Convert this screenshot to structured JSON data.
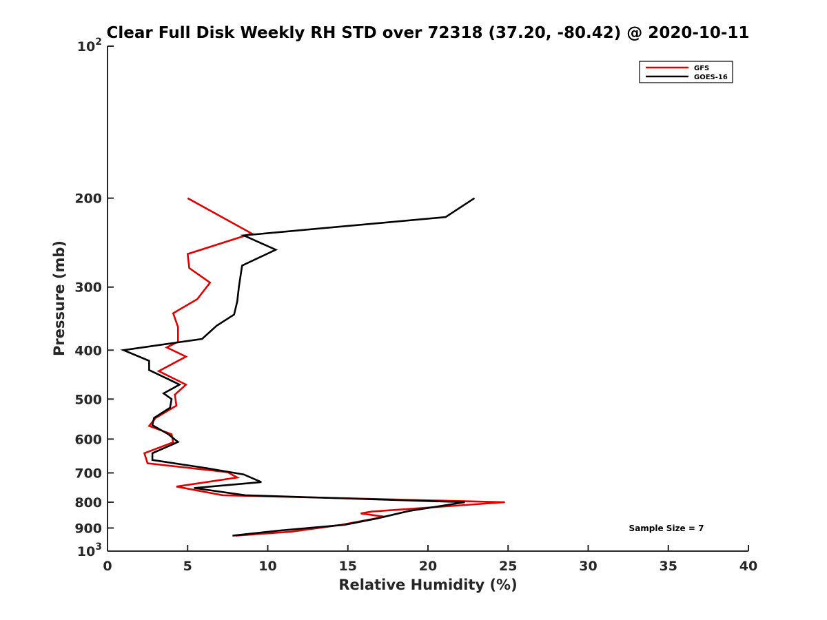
{
  "chart_data": {
    "type": "line",
    "title": "Clear Full Disk Weekly RH STD over 72318 (37.20, -80.42) @ 2020-10-11",
    "xlabel": "Relative Humidity (%)",
    "ylabel": "Pressure (mb)",
    "xlim": [
      0,
      40
    ],
    "ylim": [
      100,
      1000
    ],
    "y_scale": "log",
    "y_reversed": true,
    "grid": false,
    "x_ticks": [
      0,
      5,
      10,
      15,
      20,
      25,
      30,
      35,
      40
    ],
    "x_tick_labels": [
      "0",
      "5",
      "10",
      "15",
      "20",
      "25",
      "30",
      "35",
      "40"
    ],
    "y_ticks": [
      100,
      200,
      300,
      400,
      500,
      600,
      700,
      800,
      900,
      1000
    ],
    "y_tick_labels": [
      {
        "base": "10",
        "exp": "2"
      },
      {
        "base": "200",
        "exp": ""
      },
      {
        "base": "300",
        "exp": ""
      },
      {
        "base": "400",
        "exp": ""
      },
      {
        "base": "500",
        "exp": ""
      },
      {
        "base": "600",
        "exp": ""
      },
      {
        "base": "700",
        "exp": ""
      },
      {
        "base": "800",
        "exp": ""
      },
      {
        "base": "900",
        "exp": ""
      },
      {
        "base": "10",
        "exp": "3"
      }
    ],
    "legend_position": "top-right",
    "annotation": "Sample Size = 7",
    "series": [
      {
        "name": "GFS",
        "color": "#e00000",
        "points": [
          [
            5.0,
            200
          ],
          [
            9.0,
            235
          ],
          [
            5.0,
            258
          ],
          [
            5.1,
            275
          ],
          [
            6.4,
            294
          ],
          [
            5.6,
            317
          ],
          [
            4.1,
            338
          ],
          [
            4.4,
            360
          ],
          [
            4.4,
            385
          ],
          [
            3.7,
            395
          ],
          [
            4.9,
            412
          ],
          [
            3.2,
            440
          ],
          [
            4.9,
            468
          ],
          [
            4.2,
            490
          ],
          [
            4.3,
            515
          ],
          [
            3.0,
            545
          ],
          [
            2.6,
            565
          ],
          [
            4.0,
            587
          ],
          [
            4.1,
            609
          ],
          [
            2.3,
            640
          ],
          [
            2.5,
            670
          ],
          [
            7.5,
            698
          ],
          [
            8.1,
            715
          ],
          [
            4.3,
            745
          ],
          [
            7.2,
            775
          ],
          [
            24.8,
            800
          ],
          [
            16.5,
            835
          ],
          [
            15.8,
            842
          ],
          [
            17.3,
            855
          ],
          [
            14.6,
            887
          ],
          [
            11.5,
            915
          ],
          [
            8.0,
            932
          ]
        ]
      },
      {
        "name": "GOES-16",
        "color": "#000000",
        "points": [
          [
            22.9,
            200
          ],
          [
            21.1,
            218
          ],
          [
            8.5,
            237
          ],
          [
            10.5,
            253
          ],
          [
            8.4,
            272
          ],
          [
            8.2,
            300
          ],
          [
            8.1,
            320
          ],
          [
            7.9,
            340
          ],
          [
            6.8,
            358
          ],
          [
            5.9,
            380
          ],
          [
            1.0,
            400
          ],
          [
            2.6,
            420
          ],
          [
            2.6,
            438
          ],
          [
            4.5,
            468
          ],
          [
            3.5,
            487
          ],
          [
            4.0,
            500
          ],
          [
            3.9,
            520
          ],
          [
            2.9,
            545
          ],
          [
            2.8,
            563
          ],
          [
            3.8,
            587
          ],
          [
            4.4,
            608
          ],
          [
            2.8,
            640
          ],
          [
            2.8,
            660
          ],
          [
            6.2,
            685
          ],
          [
            8.5,
            705
          ],
          [
            9.6,
            730
          ],
          [
            5.4,
            750
          ],
          [
            8.6,
            775
          ],
          [
            22.3,
            800
          ],
          [
            18.8,
            833
          ],
          [
            16.8,
            862
          ],
          [
            14.8,
            887
          ],
          [
            10.8,
            910
          ],
          [
            7.8,
            932
          ]
        ]
      }
    ]
  }
}
